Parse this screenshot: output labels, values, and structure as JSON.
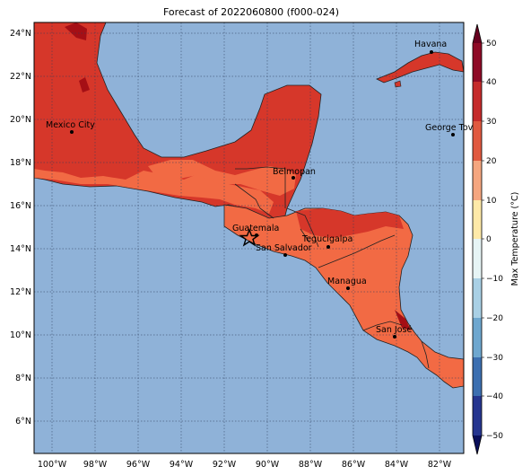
{
  "title": "Forecast of 2022060800 (f000-024)",
  "map": {
    "lon_labels": [
      "100°W",
      "98°W",
      "96°W",
      "94°W",
      "92°W",
      "90°W",
      "88°W",
      "86°W",
      "84°W",
      "82°W"
    ],
    "lat_labels": [
      "24°N",
      "22°N",
      "20°N",
      "18°N",
      "16°N",
      "14°N",
      "12°N",
      "10°N",
      "8°N",
      "6°N"
    ],
    "ocean_color": "#8fb2d8",
    "cities": [
      {
        "name": "Havana"
      },
      {
        "name": "Mexico City"
      },
      {
        "name": "George Tov"
      },
      {
        "name": "Belmopan"
      },
      {
        "name": "Guatemala"
      },
      {
        "name": "San Salvador"
      },
      {
        "name": "Tegucigalpa"
      },
      {
        "name": "Managua"
      },
      {
        "name": "San José"
      }
    ],
    "marker_symbol": "star"
  },
  "colorbar": {
    "label": "Max Temperature (°C)",
    "ticks": [
      "50",
      "40",
      "30",
      "20",
      "10",
      "0",
      "−10",
      "−20",
      "−30",
      "−40",
      "−50"
    ],
    "colors": [
      "#67001f",
      "#b2182b",
      "#d6604d",
      "#f4a582",
      "#fddbc7",
      "#ffffff",
      "#d1e5f0",
      "#92c5de",
      "#4393c3",
      "#2166ac",
      "#053061"
    ]
  }
}
